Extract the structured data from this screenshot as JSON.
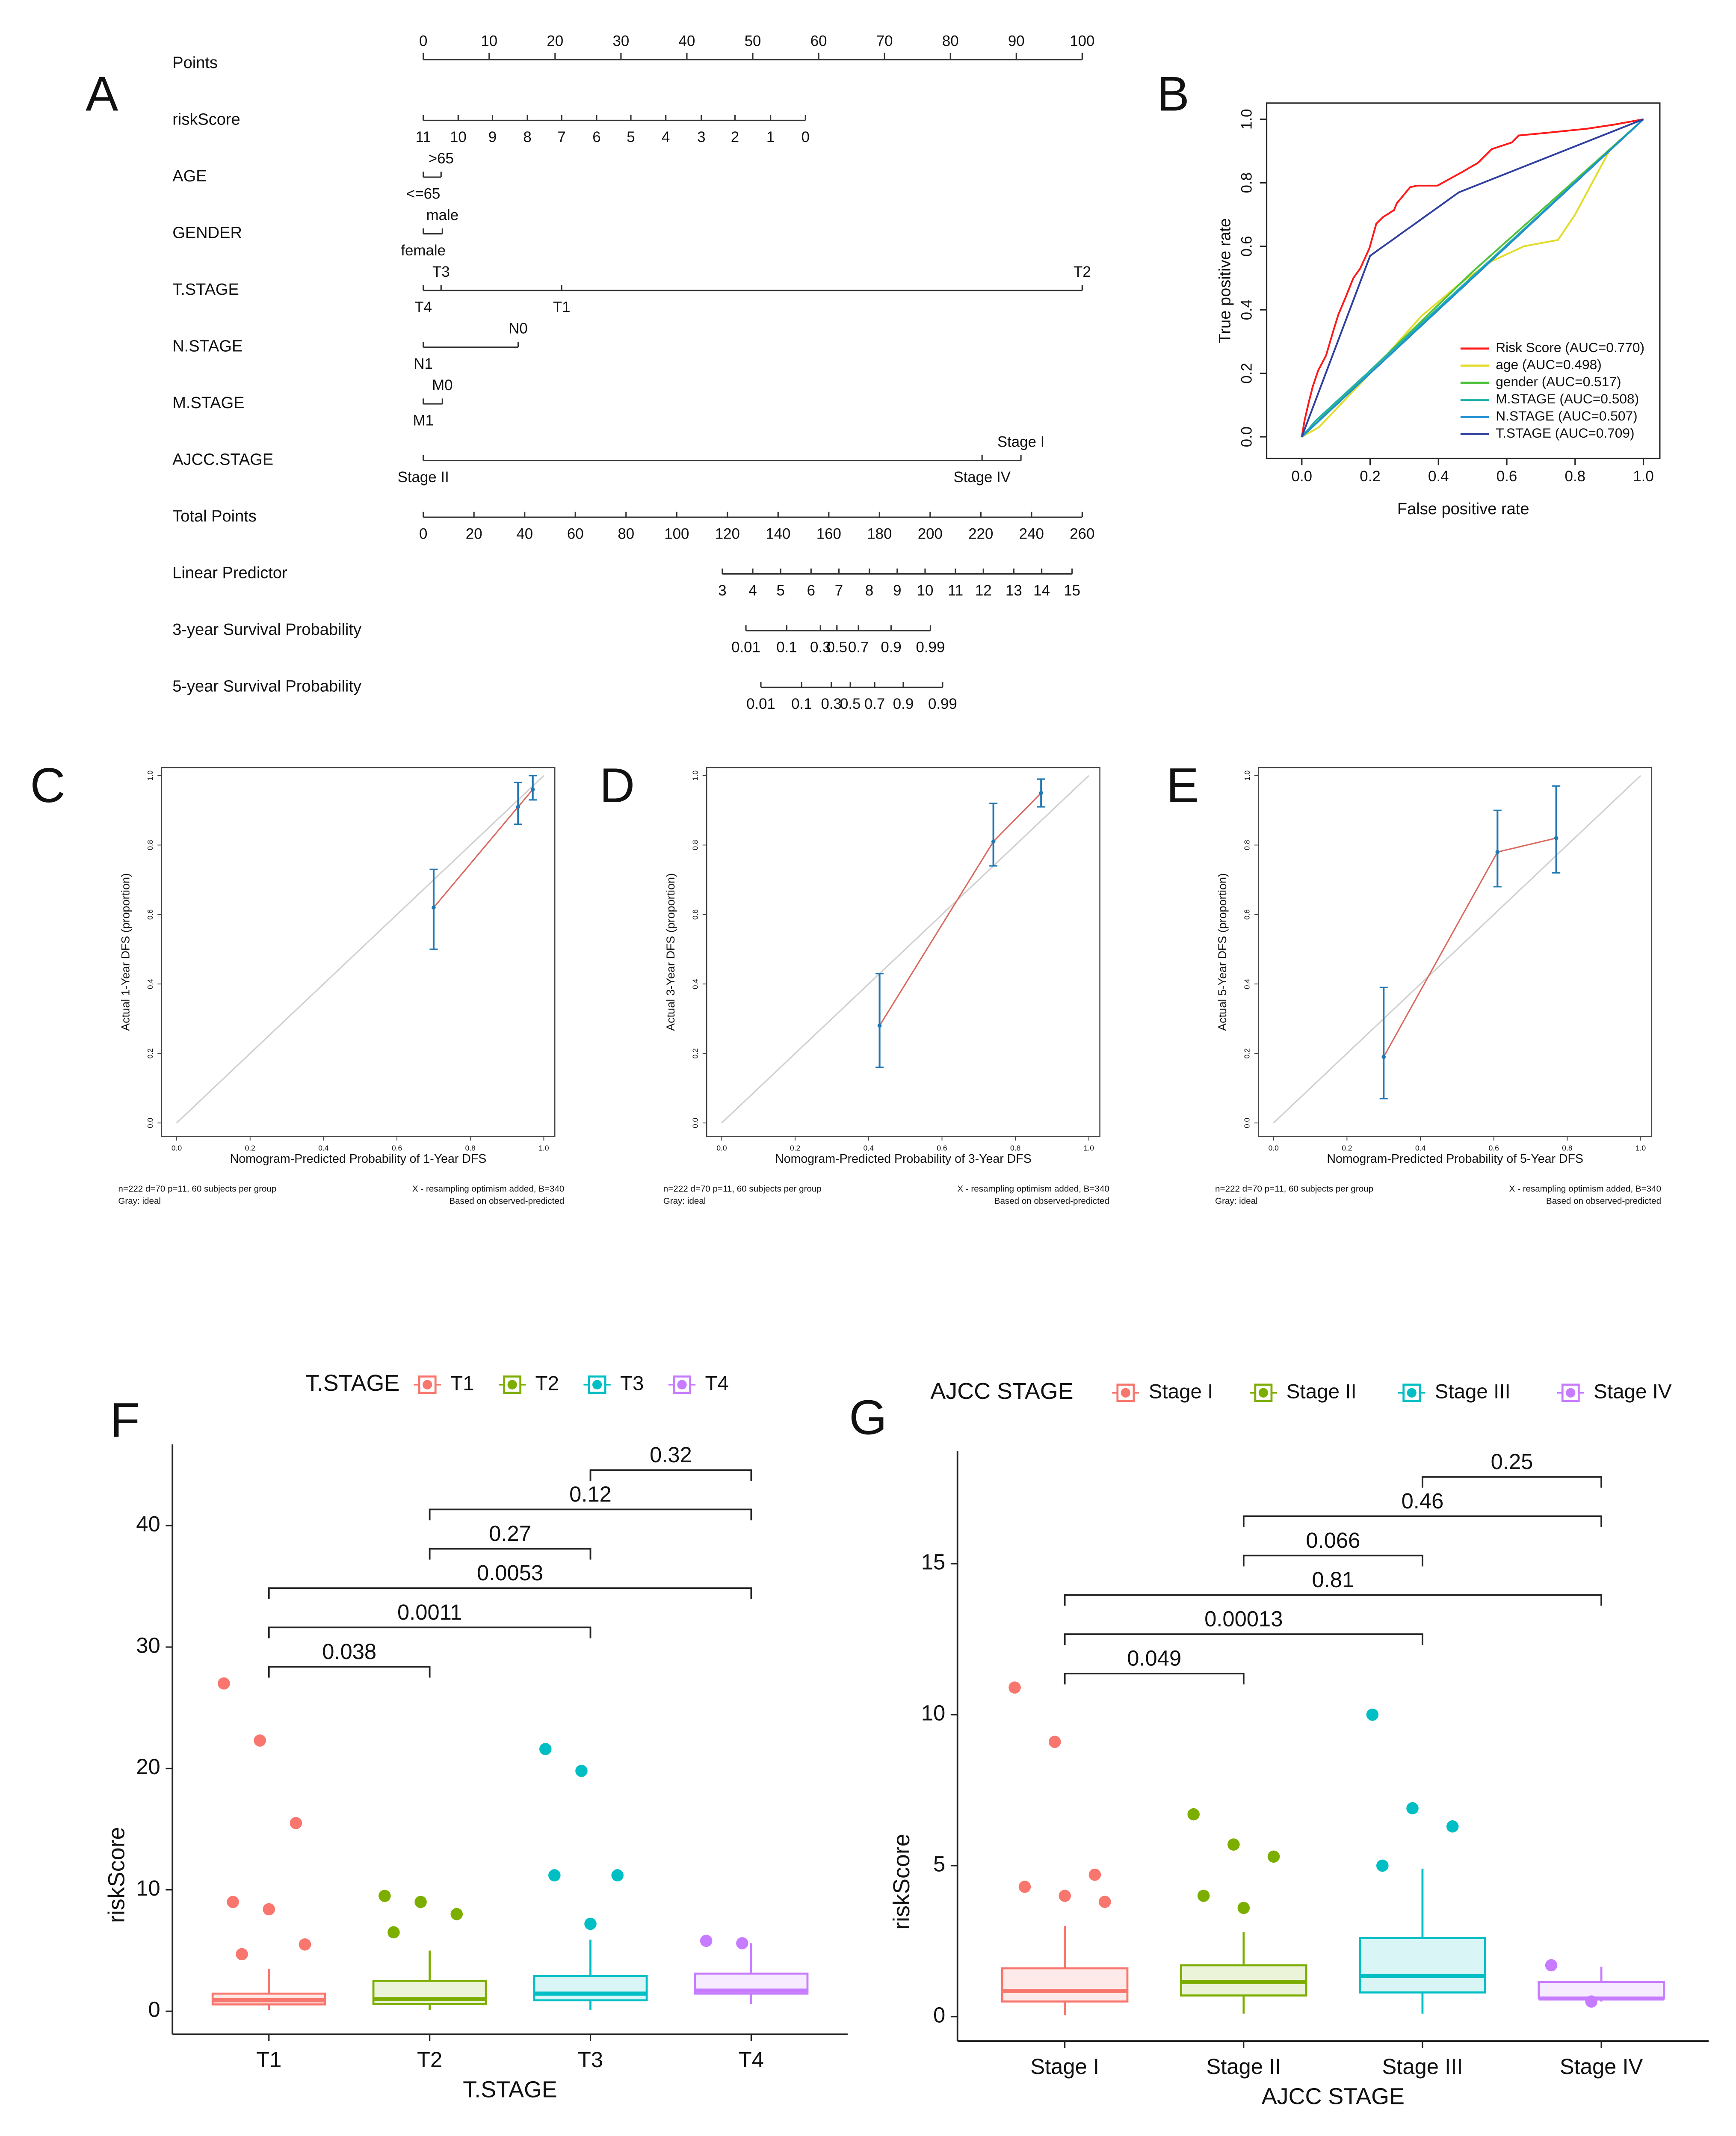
{
  "chart_data": [
    {
      "type": "nomogram",
      "panel": "A",
      "xlim": [
        0,
        100
      ],
      "total_lim": [
        0,
        260
      ],
      "rows": [
        {
          "name": "Points",
          "ticks": [
            0,
            10,
            20,
            30,
            40,
            50,
            60,
            70,
            80,
            90,
            100
          ]
        },
        {
          "name": "riskScore",
          "labels": [
            11,
            10,
            9,
            8,
            7,
            6,
            5,
            4,
            3,
            2,
            1,
            0
          ],
          "at": [
            0,
            5.3,
            10.5,
            15.8,
            21,
            26.3,
            31.5,
            36.8,
            42.2,
            47.3,
            52.7,
            58
          ]
        },
        {
          "name": "AGE",
          "labels": [
            "<=65",
            ">65"
          ],
          "at": [
            0,
            2.7
          ]
        },
        {
          "name": "GENDER",
          "labels": [
            "female",
            "male"
          ],
          "at": [
            0,
            2.9
          ]
        },
        {
          "name": "T.STAGE",
          "labels": [
            "T4",
            "T3",
            "T1",
            "T2"
          ],
          "at": [
            0,
            2.7,
            21,
            100
          ]
        },
        {
          "name": "N.STAGE",
          "labels": [
            "N1",
            "N0"
          ],
          "at": [
            0,
            14.4
          ]
        },
        {
          "name": "M.STAGE",
          "labels": [
            "M1",
            "M0"
          ],
          "at": [
            0,
            2.9
          ]
        },
        {
          "name": "AJCC.STAGE",
          "labels": [
            "Stage II",
            "Stage I",
            "Stage IV"
          ],
          "at": [
            0,
            90.7,
            84.8
          ]
        },
        {
          "name": "Total Points",
          "axis": "total",
          "ticks": [
            0,
            20,
            40,
            60,
            80,
            100,
            120,
            140,
            160,
            180,
            200,
            220,
            240,
            260
          ]
        },
        {
          "name": "Linear Predictor",
          "axis": "total",
          "labels": [
            3,
            4,
            5,
            6,
            7,
            8,
            9,
            10,
            11,
            12,
            13,
            14,
            15
          ],
          "at": [
            118,
            130,
            141,
            153,
            164,
            176,
            187,
            198,
            210,
            221,
            233,
            244,
            256
          ]
        },
        {
          "name": "3-year Survival Probability",
          "axis": "total",
          "labels": [
            0.01,
            0.1,
            0.3,
            0.5,
            0.7,
            0.9,
            0.99
          ],
          "at": [
            127.3,
            143.4,
            156.7,
            163.2,
            171.7,
            184.6,
            200.1
          ]
        },
        {
          "name": "5-year Survival Probability",
          "axis": "total",
          "labels": [
            0.01,
            0.1,
            0.3,
            0.5,
            0.7,
            0.9,
            0.99
          ],
          "at": [
            133.2,
            149.3,
            161.0,
            168.5,
            178.1,
            189.4,
            204.9
          ]
        }
      ]
    },
    {
      "type": "roc",
      "panel": "B",
      "xlabel": "False positive rate",
      "ylabel": "True positive rate",
      "xlim": [
        -0.103,
        1.048
      ],
      "ylim": [
        -0.068,
        1.051
      ],
      "xticks": [
        {
          "value": 0,
          "label": "0.0"
        },
        0.2,
        0.4,
        0.6,
        0.8,
        {
          "value": 1,
          "label": "1.0"
        }
      ],
      "yticks": [
        {
          "value": 0,
          "label": "0.0"
        },
        0.2,
        0.4,
        0.6,
        0.8,
        {
          "value": 1,
          "label": "1.0"
        }
      ],
      "legend": "bottom right",
      "series": [
        {
          "name": "Risk Score (AUC=0.770)",
          "color": "#ff1a1a",
          "x": [
            0,
            0.008,
            0.02,
            0.032,
            0.048,
            0.071,
            0.091,
            0.107,
            0.127,
            0.151,
            0.171,
            0.198,
            0.218,
            0.238,
            0.27,
            0.278,
            0.317,
            0.337,
            0.397,
            0.468,
            0.516,
            0.556,
            0.615,
            0.635,
            0.714,
            0.833,
            0.913,
            1
          ],
          "y": [
            0,
            0.051,
            0.107,
            0.158,
            0.209,
            0.256,
            0.329,
            0.385,
            0.436,
            0.5,
            0.53,
            0.594,
            0.671,
            0.692,
            0.714,
            0.735,
            0.786,
            0.791,
            0.791,
            0.833,
            0.863,
            0.906,
            0.927,
            0.949,
            0.957,
            0.97,
            0.983,
            1
          ]
        },
        {
          "name": "age (AUC=0.498)",
          "color": "#e3dc2a",
          "x": [
            0,
            0.05,
            0.2,
            0.35,
            0.46,
            0.55,
            0.65,
            0.75,
            0.8,
            0.85,
            0.9,
            1
          ],
          "y": [
            0,
            0.03,
            0.2,
            0.38,
            0.48,
            0.55,
            0.6,
            0.62,
            0.7,
            0.8,
            0.9,
            1
          ]
        },
        {
          "name": "gender (AUC=0.517)",
          "color": "#4fc13c",
          "x": [
            0,
            0.5,
            1
          ],
          "y": [
            0,
            0.52,
            1
          ]
        },
        {
          "name": "M.STAGE (AUC=0.508)",
          "color": "#20b2aa",
          "x": [
            0,
            0.04,
            1
          ],
          "y": [
            0,
            0.05,
            1
          ]
        },
        {
          "name": "N.STAGE (AUC=0.507)",
          "color": "#1f8fd0",
          "x": [
            0,
            0.5,
            1
          ],
          "y": [
            0,
            0.5,
            1
          ]
        },
        {
          "name": "T.STAGE (AUC=0.709)",
          "color": "#3040a0",
          "x": [
            0,
            0.2,
            0.46,
            1
          ],
          "y": [
            0,
            0.57,
            0.77,
            1
          ]
        }
      ]
    },
    {
      "type": "calibration",
      "panel": "C",
      "ylabel": "Actual 1-Year DFS (proportion)",
      "xlabel": "Nomogram-Predicted Probability of 1-Year DFS",
      "notes_left": [
        "n=222 d=70 p=11, 60 subjects per group",
        "Gray: ideal"
      ],
      "notes_right": [
        "X - resampling optimism added, B=340",
        "Based on observed-predicted"
      ],
      "xlim": [
        -0.041,
        1.03
      ],
      "ylim": [
        -0.039,
        1.023
      ],
      "xticks": [
        {
          "value": 0,
          "label": "0.0"
        },
        0.2,
        0.4,
        0.6,
        0.8,
        {
          "value": 1,
          "label": "1.0"
        }
      ],
      "yticks": [
        {
          "value": 0,
          "label": "0.0"
        },
        0.2,
        0.4,
        0.6,
        0.8,
        {
          "value": 1,
          "label": "1.0"
        }
      ],
      "x": [
        0.7,
        0.93,
        0.97
      ],
      "y": [
        0.62,
        0.91,
        0.96
      ],
      "lower": [
        0.5,
        0.86,
        0.93
      ],
      "upper": [
        0.73,
        0.98,
        1.0
      ],
      "line_color": "#d9695f",
      "bar_color": "#1f77b4"
    },
    {
      "type": "calibration",
      "panel": "D",
      "ylabel": "Actual 3-Year DFS (proportion)",
      "xlabel": "Nomogram-Predicted Probability of 3-Year DFS",
      "notes_left": [
        "n=222 d=70 p=11, 60 subjects per group",
        "Gray: ideal"
      ],
      "notes_right": [
        "X - resampling optimism added, B=340",
        "Based on observed-predicted"
      ],
      "xlim": [
        -0.041,
        1.03
      ],
      "ylim": [
        -0.039,
        1.023
      ],
      "xticks": [
        {
          "value": 0,
          "label": "0.0"
        },
        0.2,
        0.4,
        0.6,
        0.8,
        {
          "value": 1,
          "label": "1.0"
        }
      ],
      "yticks": [
        {
          "value": 0,
          "label": "0.0"
        },
        0.2,
        0.4,
        0.6,
        0.8,
        {
          "value": 1,
          "label": "1.0"
        }
      ],
      "x": [
        0.43,
        0.74,
        0.87
      ],
      "y": [
        0.28,
        0.81,
        0.95
      ],
      "lower": [
        0.16,
        0.74,
        0.91
      ],
      "upper": [
        0.43,
        0.92,
        0.99
      ],
      "line_color": "#d9695f",
      "bar_color": "#1f77b4"
    },
    {
      "type": "calibration",
      "panel": "E",
      "ylabel": "Actual 5-Year DFS (proportion)",
      "xlabel": "Nomogram-Predicted Probability of 5-Year DFS",
      "notes_left": [
        "n=222 d=70 p=11, 60 subjects per group",
        "Gray: ideal"
      ],
      "notes_right": [
        "X - resampling optimism added, B=340",
        "Based on observed-predicted"
      ],
      "xlim": [
        -0.041,
        1.03
      ],
      "ylim": [
        -0.039,
        1.023
      ],
      "xticks": [
        {
          "value": 0,
          "label": "0.0"
        },
        0.2,
        0.4,
        0.6,
        0.8,
        {
          "value": 1,
          "label": "1.0"
        }
      ],
      "yticks": [
        {
          "value": 0,
          "label": "0.0"
        },
        0.2,
        0.4,
        0.6,
        0.8,
        {
          "value": 1,
          "label": "1.0"
        }
      ],
      "x": [
        0.3,
        0.61,
        0.77
      ],
      "y": [
        0.19,
        0.78,
        0.82
      ],
      "lower": [
        0.07,
        0.68,
        0.72
      ],
      "upper": [
        0.39,
        0.9,
        0.97
      ],
      "line_color": "#d9695f",
      "bar_color": "#1f77b4"
    },
    {
      "type": "box",
      "panel": "F",
      "legend_title": "T.STAGE",
      "xlabel": "T.STAGE",
      "ylabel": "riskScore",
      "categories": [
        "T1",
        "T2",
        "T3",
        "T4"
      ],
      "colors": [
        "#F8766D",
        "#7CAE00",
        "#00BFC4",
        "#C77CFF"
      ],
      "ylim": [
        -1.9,
        46.7
      ],
      "yticks": [
        0,
        10,
        20,
        30,
        40
      ],
      "q1": [
        0.56,
        0.6,
        0.9,
        1.45
      ],
      "median": [
        0.9,
        1.0,
        1.45,
        1.7
      ],
      "q3": [
        1.45,
        2.5,
        2.9,
        3.1
      ],
      "lower": [
        0.1,
        0.1,
        0.1,
        0.6
      ],
      "upper": [
        3.5,
        5.0,
        5.9,
        5.6
      ],
      "outliers": [
        [
          27.0,
          22.3,
          15.5,
          9.0,
          8.4,
          5.5,
          4.7
        ],
        [
          9.5,
          9.0,
          8.0,
          6.5
        ],
        [
          21.6,
          19.8,
          11.2,
          11.2,
          7.2
        ],
        [
          5.8,
          5.6
        ]
      ],
      "comparisons": [
        {
          "pair": [
            0,
            1
          ],
          "label": "0.038"
        },
        {
          "pair": [
            0,
            2
          ],
          "label": "0.0011"
        },
        {
          "pair": [
            0,
            3
          ],
          "label": "0.0053"
        },
        {
          "pair": [
            1,
            2
          ],
          "label": "0.27"
        },
        {
          "pair": [
            1,
            3
          ],
          "label": "0.12"
        },
        {
          "pair": [
            2,
            3
          ],
          "label": "0.32"
        }
      ]
    },
    {
      "type": "box",
      "panel": "G",
      "legend_title": "AJCC STAGE",
      "xlabel": "AJCC STAGE",
      "ylabel": "riskScore",
      "categories": [
        "Stage I",
        "Stage II",
        "Stage III",
        "Stage IV"
      ],
      "colors": [
        "#F8766D",
        "#7CAE00",
        "#00BFC4",
        "#C77CFF"
      ],
      "ylim": [
        -0.81,
        18.73
      ],
      "yticks": [
        0,
        5,
        10,
        15
      ],
      "q1": [
        0.5,
        0.7,
        0.8,
        0.6
      ],
      "median": [
        0.85,
        1.15,
        1.35,
        0.6
      ],
      "q3": [
        1.6,
        1.7,
        2.6,
        1.15
      ],
      "lower": [
        0.05,
        0.1,
        0.1,
        0.5
      ],
      "upper": [
        3.0,
        2.8,
        4.9,
        1.65
      ],
      "outliers": [
        [
          10.9,
          9.1,
          4.7,
          4.3,
          4.0,
          3.8
        ],
        [
          6.7,
          5.7,
          5.3,
          4.0,
          3.6
        ],
        [
          10.0,
          6.9,
          6.3,
          5.0
        ],
        [
          1.7,
          0.5
        ]
      ],
      "comparisons": [
        {
          "pair": [
            0,
            1
          ],
          "label": "0.049"
        },
        {
          "pair": [
            0,
            2
          ],
          "label": "0.00013"
        },
        {
          "pair": [
            0,
            3
          ],
          "label": "0.81"
        },
        {
          "pair": [
            1,
            2
          ],
          "label": "0.066"
        },
        {
          "pair": [
            1,
            3
          ],
          "label": "0.46"
        },
        {
          "pair": [
            2,
            3
          ],
          "label": "0.25"
        }
      ]
    }
  ]
}
